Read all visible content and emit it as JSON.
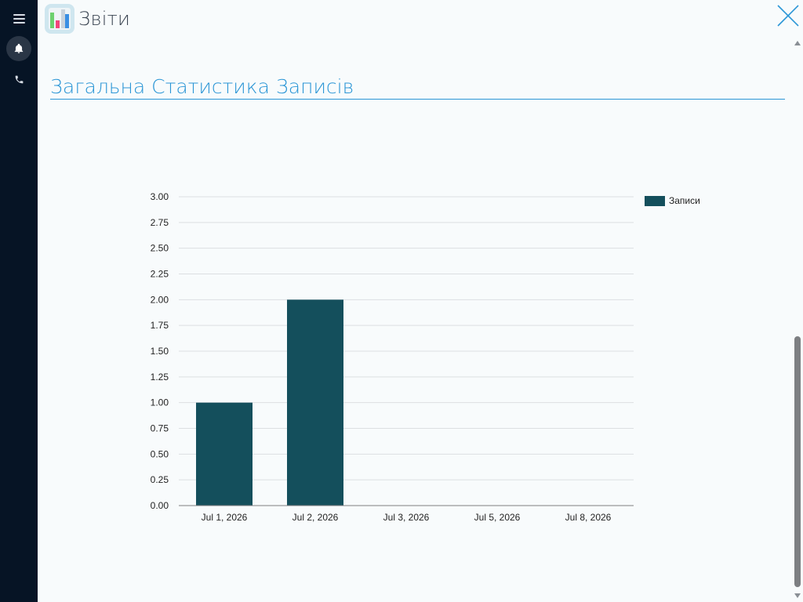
{
  "app": {
    "title": "Звіти",
    "accent_color": "#2b96d6",
    "rail_color": "#061425"
  },
  "sidebar": {
    "items": [
      {
        "name": "menu-icon"
      },
      {
        "name": "bell-icon"
      },
      {
        "name": "phone-icon"
      }
    ]
  },
  "section": {
    "title": "Загальна Статистика Записів"
  },
  "chart_data": {
    "type": "bar",
    "title": "",
    "xlabel": "",
    "ylabel": "",
    "categories": [
      "Jul 1, 2026",
      "Jul 2, 2026",
      "Jul 3, 2026",
      "Jul 5, 2026",
      "Jul 8, 2026"
    ],
    "series": [
      {
        "name": "Записи",
        "values": [
          1,
          2,
          0,
          0,
          0
        ],
        "color": "#144f5c"
      }
    ],
    "ylim": [
      0,
      3
    ],
    "yticks": [
      "0.00",
      "0.25",
      "0.50",
      "0.75",
      "1.00",
      "1.25",
      "1.50",
      "1.75",
      "2.00",
      "2.25",
      "2.50",
      "2.75",
      "3.00"
    ],
    "grid": true,
    "legend_position": "right-top"
  }
}
